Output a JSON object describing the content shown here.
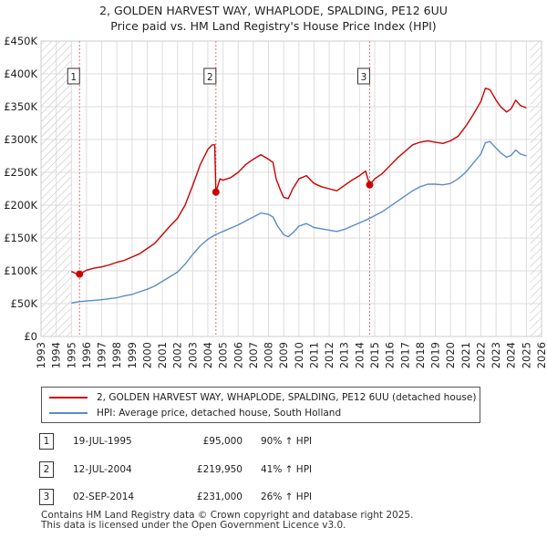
{
  "header": {
    "title_line1": "2, GOLDEN HARVEST WAY, WHAPLODE, SPALDING, PE12 6UU",
    "title_line2": "Price paid vs. HM Land Registry's House Price Index (HPI)"
  },
  "colors": {
    "property": "#cc0000",
    "hpi": "#5b8cc8",
    "grid": "#dddddd",
    "future_hatch": "#bbbbbb",
    "marker_line": "#e07070"
  },
  "chart_data": {
    "type": "line",
    "x_range": [
      1993,
      2026
    ],
    "y_range": [
      0,
      450000
    ],
    "x_ticks": [
      "1993",
      "1994",
      "1995",
      "1996",
      "1997",
      "1998",
      "1999",
      "2000",
      "2001",
      "2002",
      "2003",
      "2004",
      "2005",
      "2006",
      "2007",
      "2008",
      "2009",
      "2010",
      "2011",
      "2012",
      "2013",
      "2014",
      "2015",
      "2016",
      "2017",
      "2018",
      "2019",
      "2020",
      "2021",
      "2022",
      "2023",
      "2024",
      "2025",
      "2026"
    ],
    "y_ticks": [
      {
        "value": 0,
        "label": "£0"
      },
      {
        "value": 50000,
        "label": "£50K"
      },
      {
        "value": 100000,
        "label": "£100K"
      },
      {
        "value": 150000,
        "label": "£150K"
      },
      {
        "value": 200000,
        "label": "£200K"
      },
      {
        "value": 250000,
        "label": "£250K"
      },
      {
        "value": 300000,
        "label": "£300K"
      },
      {
        "value": 350000,
        "label": "£350K"
      },
      {
        "value": 400000,
        "label": "£400K"
      },
      {
        "value": 450000,
        "label": "£450K"
      }
    ],
    "hatched_before": 1995.0,
    "hatched_after": 2025.25,
    "series": [
      {
        "name": "2, GOLDEN HARVEST WAY, WHAPLODE, SPALDING, PE12 6UU (detached house)",
        "color": "#cc0000",
        "points": [
          [
            1995.0,
            99000
          ],
          [
            1995.3,
            96000
          ],
          [
            1995.54,
            95000
          ],
          [
            1996.0,
            101000
          ],
          [
            1996.5,
            104000
          ],
          [
            1997.0,
            106000
          ],
          [
            1997.5,
            109000
          ],
          [
            1998.0,
            113000
          ],
          [
            1998.5,
            116000
          ],
          [
            1999.0,
            121000
          ],
          [
            1999.5,
            126000
          ],
          [
            2000.0,
            134000
          ],
          [
            2000.5,
            142000
          ],
          [
            2001.0,
            155000
          ],
          [
            2001.5,
            168000
          ],
          [
            2002.0,
            180000
          ],
          [
            2002.5,
            200000
          ],
          [
            2003.0,
            230000
          ],
          [
            2003.5,
            262000
          ],
          [
            2004.0,
            285000
          ],
          [
            2004.3,
            292000
          ],
          [
            2004.45,
            292000
          ],
          [
            2004.53,
            219950
          ],
          [
            2004.8,
            240000
          ],
          [
            2005.0,
            238000
          ],
          [
            2005.5,
            242000
          ],
          [
            2006.0,
            250000
          ],
          [
            2006.5,
            262000
          ],
          [
            2007.0,
            270000
          ],
          [
            2007.5,
            277000
          ],
          [
            2008.0,
            270000
          ],
          [
            2008.3,
            265000
          ],
          [
            2008.5,
            240000
          ],
          [
            2008.8,
            222000
          ],
          [
            2009.0,
            212000
          ],
          [
            2009.3,
            210000
          ],
          [
            2009.6,
            225000
          ],
          [
            2010.0,
            240000
          ],
          [
            2010.5,
            245000
          ],
          [
            2011.0,
            233000
          ],
          [
            2011.5,
            228000
          ],
          [
            2012.0,
            225000
          ],
          [
            2012.5,
            222000
          ],
          [
            2013.0,
            230000
          ],
          [
            2013.5,
            238000
          ],
          [
            2014.0,
            245000
          ],
          [
            2014.4,
            252000
          ],
          [
            2014.67,
            231000
          ],
          [
            2015.0,
            240000
          ],
          [
            2015.5,
            248000
          ],
          [
            2016.0,
            260000
          ],
          [
            2016.5,
            272000
          ],
          [
            2017.0,
            282000
          ],
          [
            2017.5,
            292000
          ],
          [
            2018.0,
            296000
          ],
          [
            2018.5,
            298000
          ],
          [
            2019.0,
            296000
          ],
          [
            2019.5,
            294000
          ],
          [
            2020.0,
            298000
          ],
          [
            2020.5,
            305000
          ],
          [
            2021.0,
            320000
          ],
          [
            2021.5,
            338000
          ],
          [
            2022.0,
            358000
          ],
          [
            2022.3,
            378000
          ],
          [
            2022.6,
            376000
          ],
          [
            2023.0,
            360000
          ],
          [
            2023.3,
            350000
          ],
          [
            2023.7,
            342000
          ],
          [
            2024.0,
            347000
          ],
          [
            2024.3,
            360000
          ],
          [
            2024.6,
            352000
          ],
          [
            2025.0,
            348000
          ]
        ]
      },
      {
        "name": "HPI: Average price, detached house, South Holland",
        "color": "#5b8cc8",
        "points": [
          [
            1995.0,
            51000
          ],
          [
            1995.5,
            53000
          ],
          [
            1996.0,
            54000
          ],
          [
            1996.5,
            55000
          ],
          [
            1997.0,
            56000
          ],
          [
            1997.5,
            57500
          ],
          [
            1998.0,
            59000
          ],
          [
            1998.5,
            62000
          ],
          [
            1999.0,
            64000
          ],
          [
            1999.5,
            68000
          ],
          [
            2000.0,
            72000
          ],
          [
            2000.5,
            77000
          ],
          [
            2001.0,
            84000
          ],
          [
            2001.5,
            91000
          ],
          [
            2002.0,
            98000
          ],
          [
            2002.5,
            110000
          ],
          [
            2003.0,
            125000
          ],
          [
            2003.5,
            138000
          ],
          [
            2004.0,
            148000
          ],
          [
            2004.5,
            155000
          ],
          [
            2005.0,
            160000
          ],
          [
            2005.5,
            165000
          ],
          [
            2006.0,
            170000
          ],
          [
            2006.5,
            176000
          ],
          [
            2007.0,
            182000
          ],
          [
            2007.5,
            188000
          ],
          [
            2008.0,
            186000
          ],
          [
            2008.3,
            182000
          ],
          [
            2008.6,
            168000
          ],
          [
            2009.0,
            155000
          ],
          [
            2009.3,
            152000
          ],
          [
            2009.7,
            160000
          ],
          [
            2010.0,
            168000
          ],
          [
            2010.5,
            172000
          ],
          [
            2011.0,
            166000
          ],
          [
            2011.5,
            164000
          ],
          [
            2012.0,
            162000
          ],
          [
            2012.5,
            160000
          ],
          [
            2013.0,
            163000
          ],
          [
            2013.5,
            168000
          ],
          [
            2014.0,
            173000
          ],
          [
            2014.5,
            178000
          ],
          [
            2015.0,
            184000
          ],
          [
            2015.5,
            190000
          ],
          [
            2016.0,
            198000
          ],
          [
            2016.5,
            206000
          ],
          [
            2017.0,
            214000
          ],
          [
            2017.5,
            222000
          ],
          [
            2018.0,
            228000
          ],
          [
            2018.5,
            232000
          ],
          [
            2019.0,
            232000
          ],
          [
            2019.5,
            231000
          ],
          [
            2020.0,
            233000
          ],
          [
            2020.5,
            240000
          ],
          [
            2021.0,
            250000
          ],
          [
            2021.5,
            264000
          ],
          [
            2022.0,
            278000
          ],
          [
            2022.3,
            295000
          ],
          [
            2022.6,
            297000
          ],
          [
            2023.0,
            287000
          ],
          [
            2023.3,
            280000
          ],
          [
            2023.7,
            273000
          ],
          [
            2024.0,
            276000
          ],
          [
            2024.3,
            284000
          ],
          [
            2024.6,
            278000
          ],
          [
            2025.0,
            275000
          ]
        ]
      }
    ],
    "sales": [
      {
        "label": "1",
        "x": 1995.54,
        "price": 95000
      },
      {
        "label": "2",
        "x": 2004.53,
        "price": 219950
      },
      {
        "label": "3",
        "x": 2014.67,
        "price": 231000
      }
    ]
  },
  "legend": {
    "property_label": "2, GOLDEN HARVEST WAY, WHAPLODE, SPALDING, PE12 6UU (detached house)",
    "hpi_label": "HPI: Average price, detached house, South Holland"
  },
  "sales_table": [
    {
      "num": "1",
      "date": "19-JUL-1995",
      "price": "£95,000",
      "hpi": "90% ↑ HPI"
    },
    {
      "num": "2",
      "date": "12-JUL-2004",
      "price": "£219,950",
      "hpi": "41% ↑ HPI"
    },
    {
      "num": "3",
      "date": "02-SEP-2014",
      "price": "£231,000",
      "hpi": "26% ↑ HPI"
    }
  ],
  "footer": {
    "line1": "Contains HM Land Registry data © Crown copyright and database right 2025.",
    "line2": "This data is licensed under the Open Government Licence v3.0."
  }
}
